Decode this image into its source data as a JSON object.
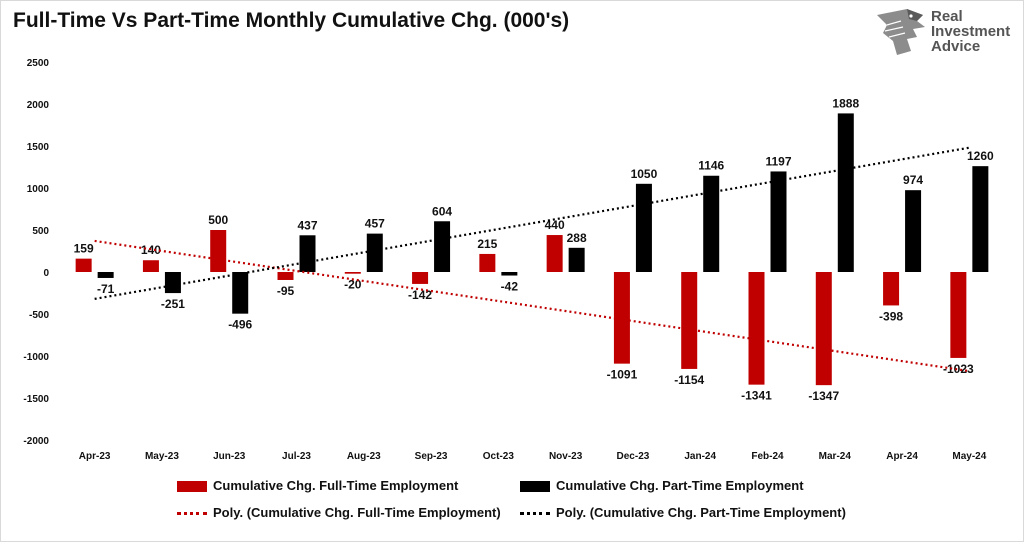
{
  "title": "Full-Time Vs Part-Time Monthly Cumulative Chg. (000's)",
  "logo": {
    "line1": "Real",
    "line2": "Investment",
    "line3": "Advice",
    "icon": "eagle-head-icon"
  },
  "colors": {
    "full_time": "#c00000",
    "part_time": "#000000",
    "grid": "#d9d9d9"
  },
  "chart_data": {
    "type": "bar",
    "categories": [
      "Apr-23",
      "May-23",
      "Jun-23",
      "Jul-23",
      "Aug-23",
      "Sep-23",
      "Oct-23",
      "Nov-23",
      "Dec-23",
      "Jan-24",
      "Feb-24",
      "Mar-24",
      "Apr-24",
      "May-24"
    ],
    "series": [
      {
        "name": "Cumulative Chg. Full-Time Employment",
        "color": "#c00000",
        "values": [
          159,
          140,
          500,
          -95,
          -20,
          -142,
          215,
          440,
          -1091,
          -1154,
          -1341,
          -1347,
          -398,
          -1023
        ]
      },
      {
        "name": "Cumulative Chg. Part-Time Employment",
        "color": "#000000",
        "values": [
          -71,
          -251,
          -496,
          437,
          457,
          604,
          -42,
          288,
          1050,
          1146,
          1197,
          1888,
          974,
          1260
        ]
      }
    ],
    "trendlines": [
      {
        "name": "Poly. (Cumulative Chg. Full-Time Employment)",
        "color": "#c00000",
        "start": 370,
        "end": -1180
      },
      {
        "name": "Poly. (Cumulative Chg. Part-Time Employment)",
        "color": "#000000",
        "start": -320,
        "end": 1480
      }
    ],
    "ylim": [
      -2000,
      2500
    ],
    "yticks": [
      -2000,
      -1500,
      -1000,
      -500,
      0,
      500,
      1000,
      1500,
      2000,
      2500
    ],
    "grid": false,
    "legend_position": "bottom",
    "xlabel": "",
    "ylabel": ""
  }
}
